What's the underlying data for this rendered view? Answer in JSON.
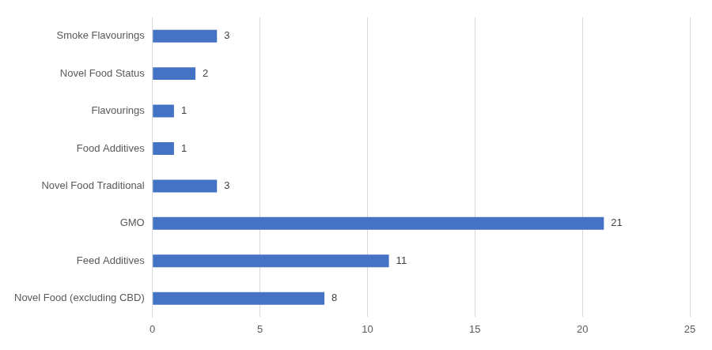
{
  "chart_data": {
    "type": "bar",
    "orientation": "horizontal",
    "categories": [
      "Smoke Flavourings",
      "Novel Food Status",
      "Flavourings",
      "Food Additives",
      "Novel Food Traditional",
      "GMO",
      "Feed Additives",
      "Novel Food (excluding CBD)"
    ],
    "values": [
      3,
      2,
      1,
      1,
      3,
      21,
      11,
      8
    ],
    "color": "#4472c4",
    "xlim": [
      0,
      25
    ],
    "xticks": [
      0,
      5,
      10,
      15,
      20,
      25
    ],
    "grid": true,
    "data_labels": true
  }
}
